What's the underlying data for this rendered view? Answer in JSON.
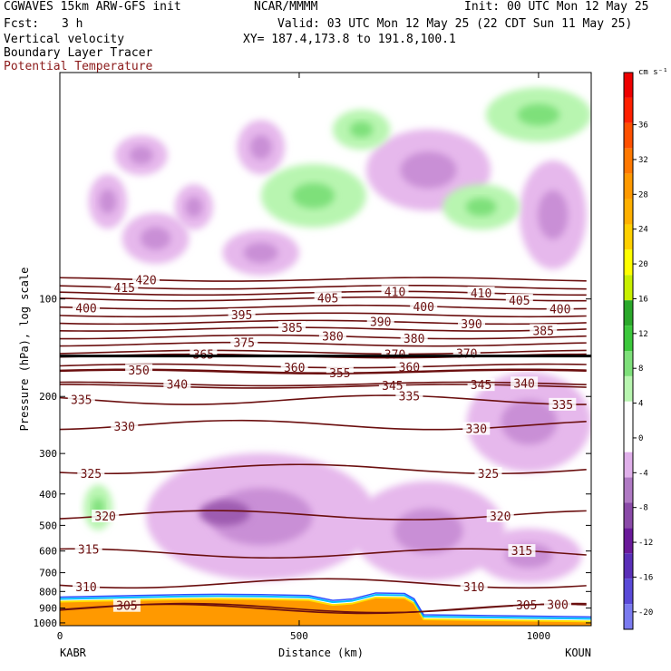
{
  "header": {
    "model": "CGWAVES 15km ARW-GFS init",
    "org": "NCAR/MMMM",
    "init": "Init: 00 UTC Mon 12 May 25",
    "fcst_label": "Fcst:",
    "fcst_value": "3 h",
    "valid": "Valid: 03 UTC Mon 12 May 25 (22 CDT Sun 11 May 25)",
    "field1": "Vertical velocity",
    "field2": "Boundary Layer Tracer",
    "field3": "Potential Temperature",
    "xy": "XY= 187.4,173.8 to 191.8,100.1"
  },
  "colors": {
    "theta": "#6b0f0f",
    "neg_light": "#e6b8ec",
    "neg_mid": "#c98fd6",
    "neg_dark": "#9e5cb0",
    "pos_light": "#b8f5b0",
    "pos_mid": "#7ee07a",
    "pbl_orange": "#ff9900"
  },
  "chart_data": {
    "type": "cross-section",
    "ylabel": "Pressure (hPa), log scale",
    "xlabel": "Distance (km)",
    "x_left_station": "KABR",
    "x_right_station": "KOUN",
    "xlim": [
      0,
      1110
    ],
    "ylim": [
      1020,
      20
    ],
    "log_y": true,
    "x_ticks": [
      0,
      500,
      1000
    ],
    "x_tick_labels": [
      "0",
      "500",
      "1000"
    ],
    "y_ticks": [
      100,
      200,
      300,
      400,
      500,
      600,
      700,
      800,
      900,
      1000
    ],
    "y_tick_labels": [
      "100",
      "200",
      "300",
      "400",
      "500",
      "600",
      "700",
      "800",
      "900",
      "1000"
    ],
    "colorbar": {
      "units": "cm s⁻¹",
      "levels": [
        -20,
        -16,
        -12,
        -8,
        -4,
        0,
        4,
        8,
        12,
        16,
        20,
        24,
        28,
        32,
        36
      ],
      "labels": [
        "-20",
        "-16",
        "-12",
        "-8",
        "-4",
        "0",
        "4",
        "8",
        "12",
        "16",
        "20",
        "24",
        "28",
        "32",
        "36"
      ],
      "colors": [
        "#7b7bf0",
        "#5a4ad8",
        "#5a2fb8",
        "#6a1a9a",
        "#8a4aa8",
        "#b07ac4",
        "#e0b0ea",
        "#ffffff",
        "#ffffff",
        "#b8f5b0",
        "#7ee07a",
        "#3cc83c",
        "#2aa82a",
        "#c8f000",
        "#ffff00",
        "#ffd000",
        "#ffb000",
        "#ff9900",
        "#ff7800",
        "#ff5000",
        "#ff2000",
        "#ee0000"
      ]
    },
    "theta_contours": [
      {
        "label": "420",
        "p": 87,
        "labels_at": [
          180
        ]
      },
      {
        "label": "415",
        "p": 92,
        "labels_at": [
          135
        ]
      },
      {
        "label": "410",
        "p": 96,
        "labels_at": [
          700,
          880
        ]
      },
      {
        "label": "405",
        "p": 100,
        "labels_at": [
          560,
          960
        ]
      },
      {
        "label": "400",
        "p": 106,
        "labels_at": [
          55,
          760,
          1045
        ]
      },
      {
        "label": "395",
        "p": 112,
        "labels_at": [
          380
        ]
      },
      {
        "label": "390",
        "p": 118,
        "labels_at": [
          670,
          860
        ]
      },
      {
        "label": "385",
        "p": 124,
        "labels_at": [
          485,
          1010
        ]
      },
      {
        "label": "380",
        "p": 131,
        "labels_at": [
          570,
          740
        ]
      },
      {
        "label": "375",
        "p": 138,
        "labels_at": [
          385
        ]
      },
      {
        "label": "370",
        "p": 146,
        "labels_at": [
          700,
          850
        ]
      },
      {
        "label": "365",
        "p": 150,
        "labels_at": [
          300
        ]
      },
      {
        "label": "360",
        "p": 161,
        "labels_at": [
          490,
          730
        ]
      },
      {
        "label": "355",
        "p": 167,
        "labels_at": [
          585
        ]
      },
      {
        "label": "350",
        "p": 168,
        "labels_at": [
          165
        ]
      },
      {
        "label": "345",
        "p": 186,
        "labels_at": [
          695,
          880
        ]
      },
      {
        "label": "340",
        "p": 183,
        "labels_at": [
          245,
          970
        ]
      },
      {
        "label": "335",
        "p": 205,
        "labels_at": [
          45,
          730,
          1050
        ]
      },
      {
        "label": "330",
        "p": 245,
        "labels_at": [
          135,
          870
        ]
      },
      {
        "label": "325",
        "p": 335,
        "labels_at": [
          65,
          895
        ]
      },
      {
        "label": "320",
        "p": 465,
        "labels_at": [
          95,
          920
        ]
      },
      {
        "label": "315",
        "p": 610,
        "labels_at": [
          60,
          965
        ]
      },
      {
        "label": "310",
        "p": 755,
        "labels_at": [
          55,
          865
        ]
      },
      {
        "label": "305",
        "p": 900,
        "labels_at": [
          140,
          975
        ]
      },
      {
        "label": "300",
        "p": 905,
        "labels_at": [
          1040
        ]
      }
    ],
    "vv_neg_regions": [
      {
        "cx": 170,
        "cy_p": 36,
        "rx": 55,
        "ry_px": 22
      },
      {
        "cx": 420,
        "cy_p": 34,
        "rx": 50,
        "ry_px": 30
      },
      {
        "cx": 770,
        "cy_p": 40,
        "rx": 130,
        "ry_px": 45
      },
      {
        "cx": 100,
        "cy_p": 50,
        "rx": 40,
        "ry_px": 30
      },
      {
        "cx": 280,
        "cy_p": 52,
        "rx": 40,
        "ry_px": 25
      },
      {
        "cx": 200,
        "cy_p": 65,
        "rx": 70,
        "ry_px": 28
      },
      {
        "cx": 1030,
        "cy_p": 55,
        "rx": 70,
        "ry_px": 60
      },
      {
        "cx": 420,
        "cy_p": 72,
        "rx": 80,
        "ry_px": 25
      },
      {
        "cx": 980,
        "cy_p": 240,
        "rx": 130,
        "ry_px": 55
      },
      {
        "cx": 420,
        "cy_p": 470,
        "rx": 240,
        "ry_px": 70
      },
      {
        "cx": 770,
        "cy_p": 520,
        "rx": 160,
        "ry_px": 55
      },
      {
        "cx": 980,
        "cy_p": 620,
        "rx": 110,
        "ry_px": 30
      }
    ],
    "vv_pos_regions": [
      {
        "cx": 1000,
        "cy_p": 27,
        "rx": 110,
        "ry_px": 30
      },
      {
        "cx": 530,
        "cy_p": 48,
        "rx": 110,
        "ry_px": 35
      },
      {
        "cx": 880,
        "cy_p": 52,
        "rx": 80,
        "ry_px": 25
      },
      {
        "cx": 630,
        "cy_p": 30,
        "rx": 60,
        "ry_px": 22
      },
      {
        "cx": 80,
        "cy_p": 440,
        "rx": 30,
        "ry_px": 25
      }
    ]
  }
}
